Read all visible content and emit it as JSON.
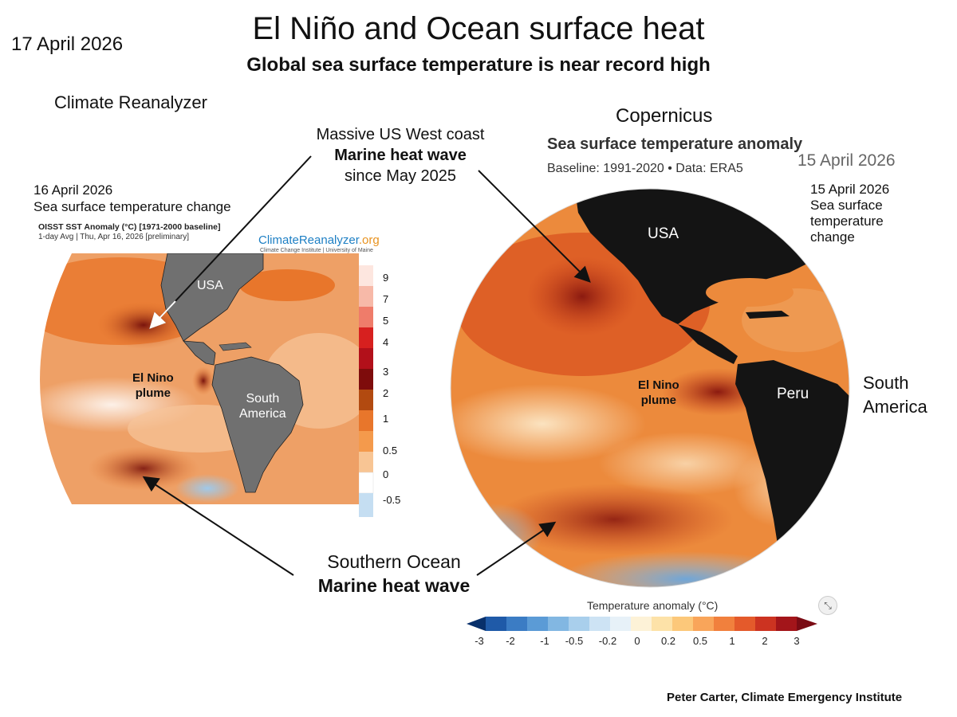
{
  "header": {
    "date": "17 April 2026",
    "title": "El Niño and Ocean surface heat",
    "subtitle": "Global sea surface temperature is near record high"
  },
  "left_panel": {
    "source": "Climate Reanalyzer",
    "date": "16 April 2026",
    "caption": "Sea surface temperature change",
    "map_title": "OISST SST Anomaly (°C) [1971-2000 baseline]",
    "map_subtitle": "1-day Avg | Thu, Apr 16, 2026 [preliminary]",
    "logo_main": "ClimateReanalyzer",
    "logo_suffix": ".org",
    "logo_institute": "Climate Change Institute | University of Maine",
    "labels": {
      "usa": "USA",
      "el_nino_1": "El Nino",
      "el_nino_2": "plume",
      "south_america_1": "South",
      "south_america_2": "America"
    },
    "colorbar_ticks": [
      "9",
      "7",
      "5",
      "4",
      "3",
      "2",
      "1",
      "0.5",
      "0",
      "-0.5"
    ]
  },
  "right_panel": {
    "source": "Copernicus",
    "title": "Sea surface temperature anomaly",
    "baseline": "Baseline: 1991-2020 • Data: ERA5",
    "date_overlay": "15 April 2026",
    "caption_lines": [
      "15 April 2026",
      "Sea surface",
      "temperature",
      "change"
    ],
    "labels": {
      "usa": "USA",
      "el_nino_1": "El Nino",
      "el_nino_2": "plume",
      "peru": "Peru"
    },
    "legend_title": "Temperature anomaly (°C)",
    "legend_ticks": [
      "-3",
      "-2",
      "-1",
      "-0.5",
      "-0.2",
      "0",
      "0.2",
      "0.5",
      "1",
      "2",
      "3"
    ],
    "expand_icon": "expand-arrows-icon"
  },
  "annotations": {
    "us_line1": "Massive US West coast",
    "us_line2": "Marine heat wave",
    "us_line3": "since May 2025",
    "south_line1": "Southern Ocean",
    "south_line2": "Marine heat wave",
    "south_america_1": "South",
    "south_america_2": "America"
  },
  "credit": "Peter Carter, Climate Emergency Institute",
  "colors": {
    "warm_dark": "#8b1a10",
    "warm": "#e8762b",
    "warm_light": "#f6c49a",
    "land_left": "#707070",
    "land_right": "#141414",
    "cool": "#9fc9ea"
  }
}
